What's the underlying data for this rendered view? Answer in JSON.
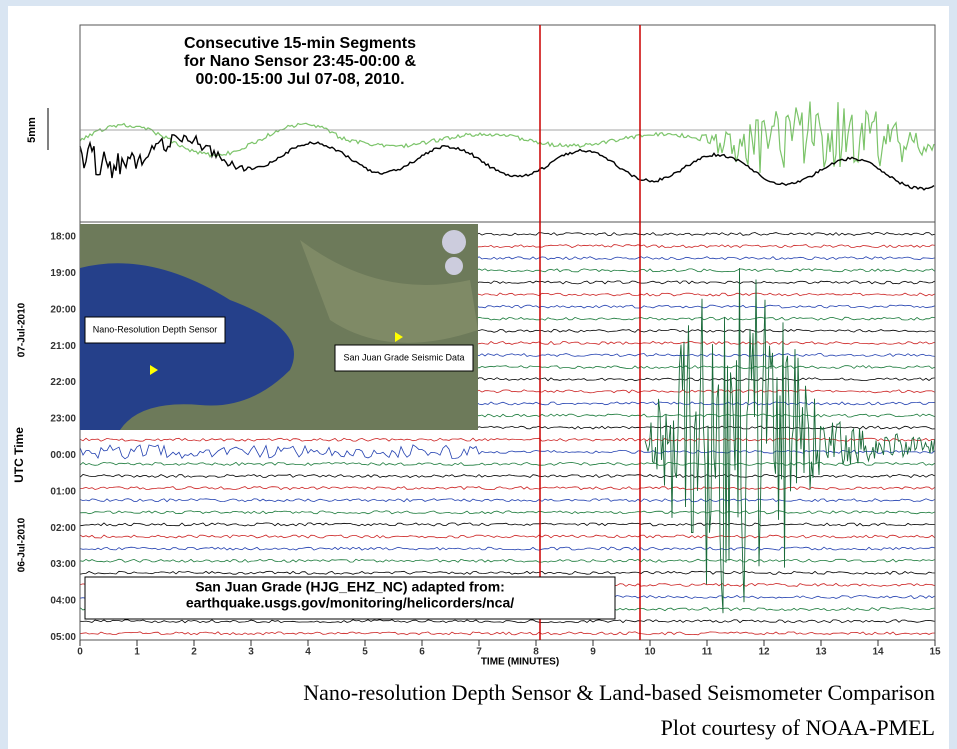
{
  "plot": {
    "title_lines": [
      "Consecutive 15-min Segments",
      "for Nano Sensor 23:45-00:00 &",
      "00:00-15:00 Jul 07-08, 2010."
    ],
    "scale_label": "5mm",
    "y_axis_label": "UTC Time",
    "date_labels": [
      "07-Jul-2010",
      "06-Jul-2010"
    ],
    "time_ticks": [
      "18:00",
      "19:00",
      "20:00",
      "21:00",
      "22:00",
      "23:00",
      "00:00",
      "01:00",
      "02:00",
      "03:00",
      "04:00",
      "05:00"
    ],
    "x_ticks": [
      0,
      1,
      2,
      3,
      4,
      5,
      6,
      7,
      8,
      9,
      10,
      11,
      12,
      13,
      14,
      15
    ],
    "x_axis_label": "TIME (MINUTES)",
    "map_labels": [
      "Nano-Resolution Depth Sensor",
      "San Juan Grade Seismic Data"
    ],
    "source_lines": [
      "San Juan Grade (HJG_EHZ_NC) adapted from:",
      "earthquake.usgs.gov/monitoring/helicorders/nca/"
    ]
  },
  "caption": [
    "Nano-resolution Depth Sensor & Land-based Seismometer Comparison",
    "Plot courtesy of NOAA-PMEL"
  ]
}
